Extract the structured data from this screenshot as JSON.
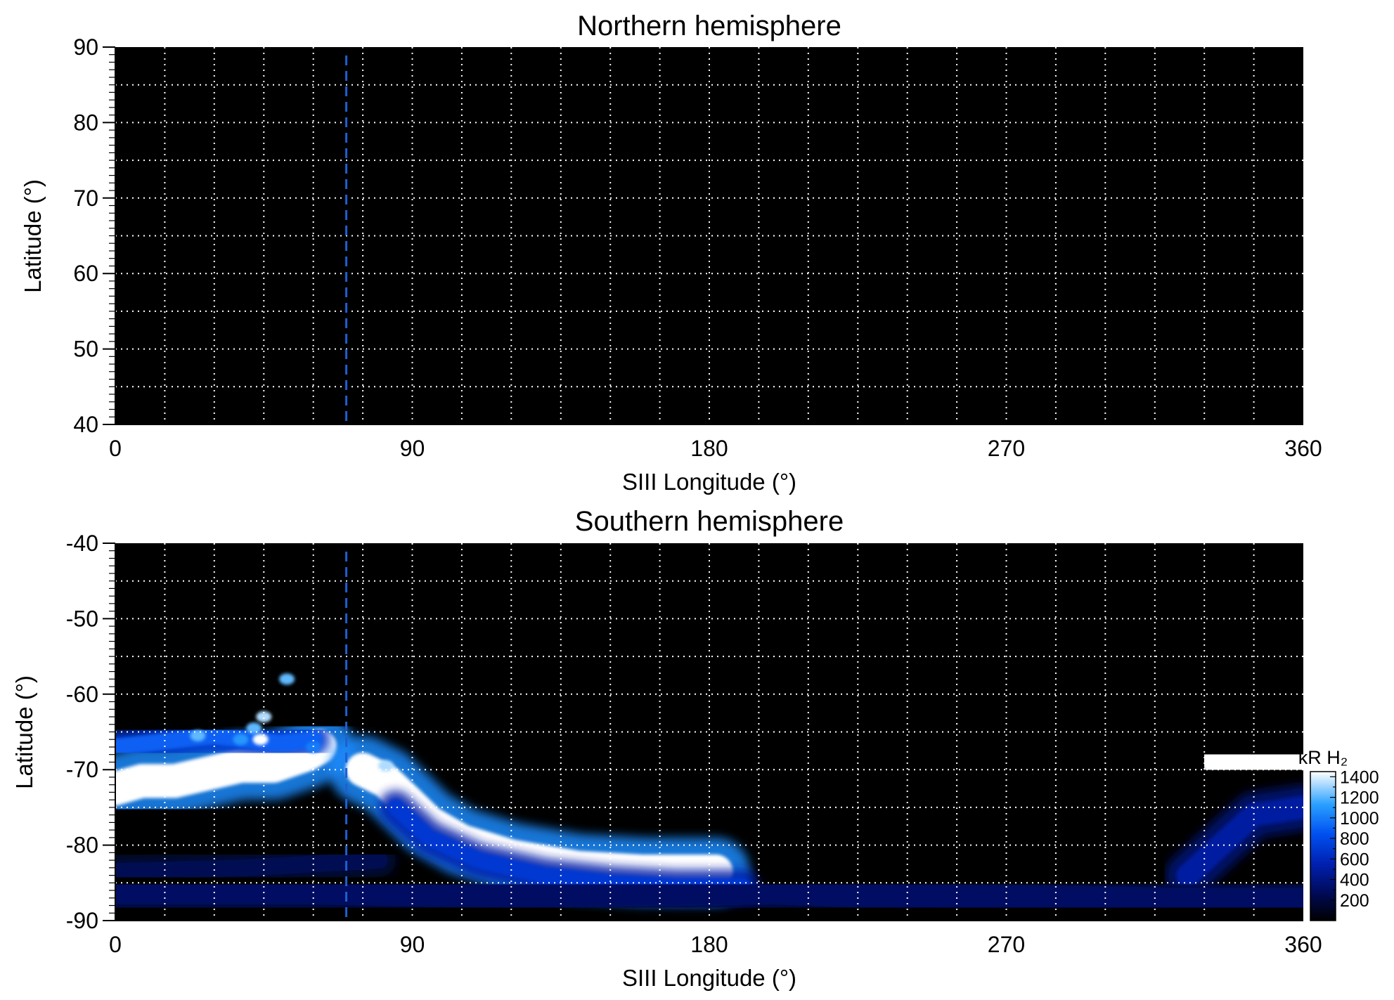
{
  "chart_data": [
    {
      "type": "heatmap",
      "title": "Northern hemisphere",
      "xlabel": "SIII Longitude (°)",
      "ylabel": "Latitude (°)",
      "xlim": [
        0,
        360
      ],
      "ylim": [
        40,
        90
      ],
      "xticks": [
        0,
        90,
        180,
        270,
        360
      ],
      "yticks": [
        40,
        50,
        60,
        70,
        80,
        90
      ],
      "x_grid": 15,
      "y_grid": 5,
      "grid": true,
      "marker_longitude": 70,
      "marker_color": "#1f5fd0",
      "background_color": "#000000",
      "emission_regions": []
    },
    {
      "type": "heatmap",
      "title": "Southern hemisphere",
      "xlabel": "SIII Longitude (°)",
      "ylabel": "Latitude (°)",
      "xlim": [
        0,
        360
      ],
      "ylim": [
        -90,
        -40
      ],
      "xticks": [
        0,
        90,
        180,
        270,
        360
      ],
      "yticks": [
        -90,
        -80,
        -70,
        -60,
        -50,
        -40
      ],
      "x_grid": 15,
      "y_grid": 5,
      "grid": true,
      "marker_longitude": 70,
      "marker_color": "#1f5fd0",
      "background_color": "#000000",
      "emission_regions": [
        {
          "band": [
            [
              0,
              -72.5
            ],
            [
              8,
              -71.5
            ],
            [
              18,
              -71.5
            ],
            [
              28,
              -70.5
            ],
            [
              38,
              -69.5
            ],
            [
              48,
              -69.5
            ],
            [
              58,
              -68
            ],
            [
              62,
              -67
            ]
          ],
          "width": 6,
          "intensity": 1400
        },
        {
          "band": [
            [
              0,
              -67
            ],
            [
              10,
              -66.5
            ],
            [
              20,
              -66
            ],
            [
              30,
              -65.5
            ],
            [
              40,
              -66
            ],
            [
              50,
              -66.5
            ],
            [
              60,
              -66
            ]
          ],
          "width": 3,
          "intensity": 900
        },
        {
          "band": [
            [
              75,
              -70
            ],
            [
              82,
              -71.5
            ],
            [
              88,
              -74
            ],
            [
              95,
              -77
            ],
            [
              105,
              -79.5
            ],
            [
              120,
              -81.5
            ],
            [
              140,
              -83
            ],
            [
              160,
              -83.5
            ],
            [
              175,
              -83.5
            ],
            [
              182,
              -83.5
            ]
          ],
          "width": 6,
          "intensity": 1400
        },
        {
          "band": [
            [
              85,
              -75
            ],
            [
              95,
              -79
            ],
            [
              110,
              -82
            ],
            [
              130,
              -84
            ],
            [
              150,
              -85
            ],
            [
              170,
              -85.5
            ],
            [
              190,
              -85.5
            ]
          ],
          "width": 3,
          "intensity": 700
        },
        {
          "band": [
            [
              335,
              -68.5
            ],
            [
              345,
              -69.5
            ],
            [
              355,
              -69.5
            ],
            [
              360,
              -69.5
            ]
          ],
          "width": 7,
          "intensity": 1400
        },
        {
          "band": [
            [
              325,
              -84
            ],
            [
              335,
              -80
            ],
            [
              345,
              -76
            ],
            [
              360,
              -75
            ]
          ],
          "width": 4,
          "intensity": 500
        },
        {
          "band": [
            [
              0,
              -86
            ],
            [
              60,
              -86
            ],
            [
              120,
              -86.5
            ],
            [
              200,
              -86
            ],
            [
              260,
              -87
            ],
            [
              320,
              -87.5
            ],
            [
              360,
              -87.5
            ]
          ],
          "width": 5,
          "intensity": 300
        },
        {
          "band": [
            [
              0,
              -83.5
            ],
            [
              40,
              -83
            ],
            [
              80,
              -82
            ]
          ],
          "width": 3,
          "intensity": 250
        }
      ],
      "emission_spots": [
        {
          "lon": 52,
          "lat": -58,
          "intensity": 1200
        },
        {
          "lon": 45,
          "lat": -63,
          "intensity": 1300
        },
        {
          "lon": 44,
          "lat": -66,
          "intensity": 1400
        },
        {
          "lon": 42,
          "lat": -64.5,
          "intensity": 1200
        },
        {
          "lon": 38,
          "lat": -66,
          "intensity": 1100
        },
        {
          "lon": 25,
          "lat": -65.5,
          "intensity": 1200
        },
        {
          "lon": 60,
          "lat": -67,
          "intensity": 1000
        },
        {
          "lon": 82,
          "lat": -69.5,
          "intensity": 1300
        }
      ],
      "colorbar": {
        "label": "kR H₂",
        "ticks": [
          200,
          400,
          600,
          800,
          1000,
          1200,
          1400
        ],
        "range": [
          0,
          1450
        ]
      }
    }
  ]
}
